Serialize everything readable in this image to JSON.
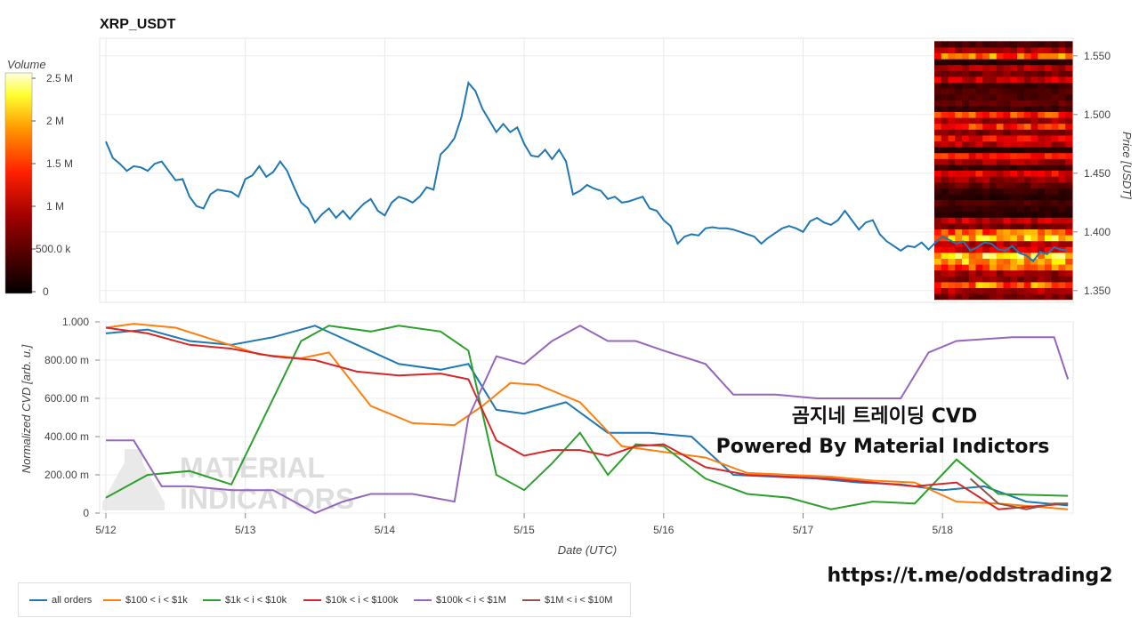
{
  "page": {
    "title": "XRP_USDT",
    "overlay_line1": "곰지네 트레이딩 CVD",
    "overlay_line2": "Powered By Material Indictors",
    "url": "https://t.me/oddstrading2",
    "watermark_line1": "MATERIAL",
    "watermark_line2": "INDICATORS"
  },
  "colors": {
    "all_orders": "#1f77b4",
    "s100": "#ff7f0e",
    "s1k": "#2ca02c",
    "s10k": "#d62728",
    "s100k": "#9467bd",
    "s1m": "#8c564b",
    "price": "#1f77b4"
  },
  "chart_data": [
    {
      "type": "line",
      "title": "XRP_USDT",
      "ylabel": "Price [USDT]",
      "ylim": [
        1.34,
        1.565
      ],
      "y_ticks": [
        "1.350",
        "1.400",
        "1.450",
        "1.500",
        "1.550"
      ],
      "x_ticks": [
        "5/12",
        "5/13",
        "5/14",
        "5/15",
        "5/16",
        "5/17",
        "5/18"
      ],
      "series": [
        {
          "x": [
            0,
            0.05,
            0.1,
            0.15,
            0.2,
            0.25,
            0.3,
            0.35,
            0.4,
            0.45,
            0.5,
            0.55,
            0.6,
            0.65,
            0.7,
            0.75,
            0.8,
            0.85,
            0.9,
            0.95,
            1,
            1.05,
            1.1,
            1.15,
            1.2,
            1.25,
            1.3,
            1.35,
            1.4,
            1.45,
            1.5,
            1.55,
            1.6,
            1.65,
            1.7,
            1.75,
            1.8,
            1.85,
            1.9,
            1.95,
            2,
            2.05,
            2.1,
            2.15,
            2.2,
            2.25,
            2.3,
            2.35,
            2.4,
            2.45,
            2.5,
            2.55,
            2.6,
            2.65,
            2.7,
            2.75,
            2.8,
            2.85,
            2.9,
            2.95,
            3,
            3.05,
            3.1,
            3.15,
            3.2,
            3.25,
            3.3,
            3.35,
            3.4,
            3.45,
            3.5,
            3.55,
            3.6,
            3.65,
            3.7,
            3.75,
            3.8,
            3.85,
            3.9,
            3.95,
            4,
            4.05,
            4.1,
            4.15,
            4.2,
            4.25,
            4.3,
            4.35,
            4.4,
            4.45,
            4.5,
            4.55,
            4.6,
            4.65,
            4.7,
            4.75,
            4.8,
            4.85,
            4.9,
            4.95,
            5,
            5.05,
            5.1,
            5.15,
            5.2,
            5.25,
            5.3,
            5.35,
            5.4,
            5.45,
            5.5,
            5.55,
            5.6,
            5.65,
            5.7,
            5.75,
            5.8,
            5.85,
            5.9,
            5.95,
            6,
            6.05,
            6.1,
            6.15,
            6.2,
            6.25,
            6.3,
            6.35,
            6.4,
            6.45,
            6.5,
            6.55,
            6.6,
            6.65,
            6.7,
            6.75,
            6.8,
            6.85,
            6.9
          ],
          "y": [
            1.477,
            1.463,
            1.458,
            1.452,
            1.456,
            1.455,
            1.452,
            1.458,
            1.46,
            1.452,
            1.444,
            1.445,
            1.43,
            1.422,
            1.42,
            1.432,
            1.436,
            1.435,
            1.434,
            1.43,
            1.445,
            1.448,
            1.456,
            1.447,
            1.451,
            1.46,
            1.452,
            1.438,
            1.425,
            1.42,
            1.408,
            1.415,
            1.42,
            1.412,
            1.418,
            1.411,
            1.418,
            1.424,
            1.428,
            1.418,
            1.414,
            1.425,
            1.43,
            1.428,
            1.425,
            1.43,
            1.438,
            1.436,
            1.466,
            1.472,
            1.48,
            1.498,
            1.527,
            1.52,
            1.505,
            1.495,
            1.485,
            1.492,
            1.485,
            1.489,
            1.475,
            1.465,
            1.464,
            1.47,
            1.462,
            1.47,
            1.46,
            1.432,
            1.435,
            1.44,
            1.437,
            1.435,
            1.428,
            1.43,
            1.425,
            1.426,
            1.428,
            1.43,
            1.42,
            1.418,
            1.41,
            1.405,
            1.39,
            1.396,
            1.398,
            1.397,
            1.403,
            1.404,
            1.403,
            1.403,
            1.402,
            1.4,
            1.398,
            1.396,
            1.39,
            1.395,
            1.399,
            1.403,
            1.405,
            1.403,
            1.4,
            1.409,
            1.412,
            1.408,
            1.406,
            1.41,
            1.418,
            1.41,
            1.402,
            1.408,
            1.41,
            1.398,
            1.392,
            1.388,
            1.384,
            1.388,
            1.387,
            1.391,
            1.385,
            1.391,
            1.396,
            1.393,
            1.39,
            1.392,
            1.384,
            1.387,
            1.391,
            1.39,
            1.385,
            1.384,
            1.388,
            1.382,
            1.38,
            1.375,
            1.383,
            1.381,
            1.387,
            1.385,
            1.384
          ]
        }
      ]
    },
    {
      "type": "heatmap",
      "title": "Volume",
      "colorbar_ticks": [
        "0",
        "500.0 k",
        "1 M",
        "1.5 M",
        "2 M",
        "2.5 M"
      ],
      "price_bins": [
        1.345,
        1.35,
        1.355,
        1.36,
        1.365,
        1.37,
        1.375,
        1.38,
        1.385,
        1.39,
        1.395,
        1.4,
        1.405,
        1.41,
        1.415,
        1.42,
        1.425,
        1.43,
        1.435,
        1.44,
        1.445,
        1.45,
        1.455,
        1.46,
        1.465,
        1.47,
        1.475,
        1.48,
        1.485,
        1.49,
        1.495,
        1.5,
        1.505,
        1.51,
        1.515,
        1.52,
        1.525,
        1.53,
        1.535,
        1.54,
        1.545,
        1.55,
        1.555,
        1.56
      ],
      "volume_levels_m": [
        0.6,
        0.9,
        1.8,
        0.7,
        0.8,
        1.6,
        2.0,
        2.3,
        1.2,
        1.0,
        2.2,
        1.7,
        0.6,
        1.0,
        0.2,
        0.3,
        0.4,
        0.2,
        0.3,
        0.5,
        0.8,
        1.2,
        0.3,
        0.8,
        1.3,
        0.2,
        0.9,
        1.2,
        0.6,
        1.4,
        0.8,
        1.5,
        0.3,
        0.5,
        0.4,
        0.4,
        0.3,
        1.0,
        0.6,
        0.9,
        0.2,
        1.7,
        0.9,
        0.4
      ]
    },
    {
      "type": "line",
      "ylabel": "Normalized CVD [arb. u.]",
      "xlabel": "Date (UTC)",
      "ylim": [
        0,
        1.0
      ],
      "y_ticks": [
        "0",
        "200.00 m",
        "400.00 m",
        "600.00 m",
        "800.00 m",
        "1.000"
      ],
      "x_ticks": [
        "5/12",
        "5/13",
        "5/14",
        "5/15",
        "5/16",
        "5/17",
        "5/18"
      ],
      "series": [
        {
          "name": "all orders",
          "color_key": "all_orders",
          "x": [
            0,
            0.3,
            0.6,
            0.9,
            1.2,
            1.5,
            1.8,
            2.1,
            2.4,
            2.6,
            2.8,
            3.0,
            3.3,
            3.6,
            3.9,
            4.2,
            4.5,
            4.8,
            5.1,
            5.4,
            5.7,
            6.0,
            6.3,
            6.6,
            6.9
          ],
          "y": [
            0.94,
            0.96,
            0.9,
            0.88,
            0.92,
            0.98,
            0.88,
            0.78,
            0.75,
            0.78,
            0.54,
            0.52,
            0.58,
            0.42,
            0.42,
            0.4,
            0.2,
            0.19,
            0.18,
            0.16,
            0.15,
            0.12,
            0.14,
            0.06,
            0.04
          ]
        },
        {
          "name": "$100 < i < $1k",
          "color_key": "s100",
          "x": [
            0,
            0.2,
            0.5,
            0.8,
            1.1,
            1.4,
            1.6,
            1.9,
            2.2,
            2.5,
            2.7,
            2.9,
            3.1,
            3.4,
            3.7,
            4.0,
            4.3,
            4.6,
            4.9,
            5.2,
            5.5,
            5.8,
            6.1,
            6.4,
            6.9
          ],
          "y": [
            0.97,
            0.99,
            0.97,
            0.9,
            0.83,
            0.81,
            0.84,
            0.56,
            0.47,
            0.46,
            0.56,
            0.68,
            0.67,
            0.58,
            0.35,
            0.32,
            0.29,
            0.21,
            0.2,
            0.19,
            0.17,
            0.16,
            0.06,
            0.05,
            0.02
          ]
        },
        {
          "name": "$1k < i < $10k",
          "color_key": "s1k",
          "x": [
            0,
            0.3,
            0.6,
            0.9,
            1.1,
            1.4,
            1.6,
            1.9,
            2.1,
            2.4,
            2.6,
            2.8,
            3.0,
            3.2,
            3.4,
            3.6,
            3.8,
            4.0,
            4.3,
            4.6,
            4.9,
            5.2,
            5.5,
            5.8,
            6.1,
            6.4,
            6.9
          ],
          "y": [
            0.08,
            0.2,
            0.22,
            0.15,
            0.45,
            0.9,
            0.98,
            0.95,
            0.98,
            0.95,
            0.85,
            0.2,
            0.12,
            0.26,
            0.42,
            0.2,
            0.36,
            0.35,
            0.18,
            0.1,
            0.08,
            0.02,
            0.06,
            0.05,
            0.28,
            0.1,
            0.09
          ]
        },
        {
          "name": "$10k < i < $100k",
          "color_key": "s10k",
          "x": [
            0,
            0.3,
            0.6,
            0.9,
            1.2,
            1.5,
            1.8,
            2.1,
            2.4,
            2.6,
            2.8,
            3.0,
            3.2,
            3.4,
            3.6,
            3.8,
            4.0,
            4.3,
            4.6,
            4.9,
            5.2,
            5.5,
            5.8,
            6.1,
            6.4,
            6.9
          ],
          "y": [
            0.97,
            0.94,
            0.88,
            0.86,
            0.82,
            0.8,
            0.74,
            0.72,
            0.73,
            0.7,
            0.38,
            0.3,
            0.33,
            0.33,
            0.3,
            0.35,
            0.36,
            0.24,
            0.2,
            0.19,
            0.18,
            0.16,
            0.14,
            0.16,
            0.02,
            0.05
          ]
        },
        {
          "name": "$100k < i < $1M",
          "color_key": "s100k",
          "x": [
            0,
            0.2,
            0.4,
            0.6,
            0.9,
            1.2,
            1.5,
            1.7,
            1.9,
            2.2,
            2.5,
            2.6,
            2.8,
            3.0,
            3.2,
            3.4,
            3.6,
            3.8,
            4.0,
            4.3,
            4.5,
            4.8,
            5.1,
            5.4,
            5.7,
            5.9,
            6.1,
            6.5,
            6.8,
            6.9
          ],
          "y": [
            0.38,
            0.38,
            0.14,
            0.14,
            0.12,
            0.12,
            0.0,
            0.06,
            0.1,
            0.1,
            0.06,
            0.5,
            0.82,
            0.78,
            0.9,
            0.98,
            0.9,
            0.9,
            0.85,
            0.78,
            0.62,
            0.62,
            0.6,
            0.6,
            0.6,
            0.84,
            0.9,
            0.92,
            0.92,
            0.7
          ]
        },
        {
          "name": "$1M < i < $10M",
          "color_key": "s1m",
          "x": [
            6.2,
            6.4,
            6.6,
            6.8,
            6.9
          ],
          "y": [
            0.18,
            0.05,
            0.02,
            0.05,
            0.05
          ]
        }
      ]
    }
  ],
  "legend": {
    "items": [
      {
        "label": "all orders",
        "color": "#1f77b4"
      },
      {
        "label": "$100 < i < $1k",
        "color": "#ff7f0e"
      },
      {
        "label": "$1k < i < $10k",
        "color": "#2ca02c"
      },
      {
        "label": "$10k < i < $100k",
        "color": "#d62728"
      },
      {
        "label": "$100k < i < $1M",
        "color": "#9467bd"
      },
      {
        "label": "$1M < i < $10M",
        "color": "#8c564b"
      }
    ]
  }
}
